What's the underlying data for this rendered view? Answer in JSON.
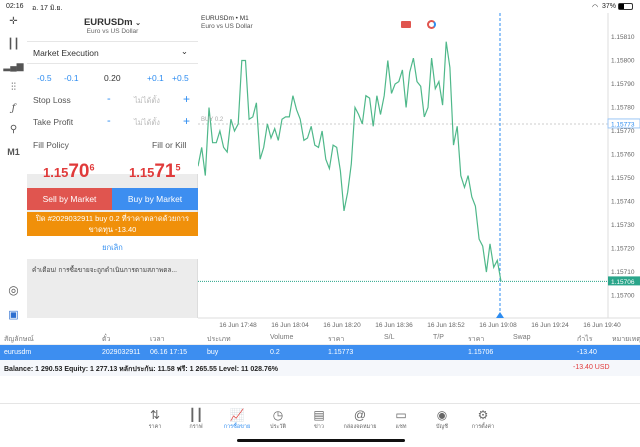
{
  "status": {
    "time": "02:16",
    "date": "อ. 17 มิ.ย.",
    "battery": "37%"
  },
  "toolbar_icons": [
    "crosshair-icon",
    "indicators-icon",
    "objects-icon",
    "settings-sliders-icon",
    "function-icon",
    "user-search-icon",
    "timeframe-label",
    "zoom-chart-icon",
    "trade-app-icon"
  ],
  "timeframe": "M1",
  "panel": {
    "symbol": "EURUSDm",
    "symbol_desc": "Euro vs US Dollar",
    "execution": "Market Execution",
    "vol_steps": [
      "-0.5",
      "-0.1",
      "+0.1",
      "+0.5"
    ],
    "volume": "0.20",
    "stop_loss": "Stop Loss",
    "take_profit": "Take Profit",
    "not_set": "ไม่ได้ตั้ง",
    "minus": "-",
    "plus": "+",
    "fill_policy": "Fill Policy",
    "fill_value": "Fill or Kill",
    "bid": {
      "main": "1.15",
      "big": "70",
      "sup": "6"
    },
    "ask": {
      "main": "1.15",
      "big": "71",
      "sup": "5"
    },
    "sell": "Sell by Market",
    "buy": "Buy by Market",
    "close_order": "ปิด #2029032911 buy 0.2 ที่ราคาตลาดด้วยการขาดทุน -13.40",
    "cancel": "ยกเลิก",
    "warning": "คำเตือน! การซื้อขายจะถูกดำเนินการตามสภาพตล..."
  },
  "chart": {
    "title": "EURUSDm • M1",
    "subtitle": "Euro vs US Dollar",
    "position_label": "BUY 0.2",
    "open_price": "1.15773",
    "current_price": "1.15706",
    "colors": {
      "line": "#4fb88a",
      "current": "#2aa58a",
      "position": "#2d8cf0"
    }
  },
  "chart_data": {
    "type": "line",
    "title": "EURUSDm • M1",
    "ylim": [
      1.15695,
      1.15815
    ],
    "yticks": [
      "1.15810",
      "1.15800",
      "1.15790",
      "1.15780",
      "1.15770",
      "1.15760",
      "1.15750",
      "1.15740",
      "1.15730",
      "1.15720",
      "1.15710",
      "1.15700"
    ],
    "xticks": [
      "16 Jun 17:48",
      "16 Jun 18:04",
      "16 Jun 18:20",
      "16 Jun 18:36",
      "16 Jun 18:52",
      "16 Jun 19:08",
      "16 Jun 19:24",
      "16 Jun 19:40"
    ],
    "series": [
      {
        "name": "EURUSDm",
        "values": [
          1.15755,
          1.15763,
          1.15751,
          1.1578,
          1.15765,
          1.15765,
          1.1577,
          1.15763,
          1.15761,
          1.15775,
          1.1577,
          1.15773,
          1.158,
          1.158,
          1.15775,
          1.15776,
          1.15782,
          1.15758,
          1.15763,
          1.15773,
          1.15767,
          1.15771,
          1.15766,
          1.15775,
          1.15776,
          1.15776,
          1.15785,
          1.15779,
          1.15775,
          1.15766,
          1.15767,
          1.15772,
          1.15764,
          1.15763,
          1.1577,
          1.15758,
          1.15754,
          1.15764,
          1.15763,
          1.15753,
          1.15736,
          1.15744,
          1.15756,
          1.1578,
          1.15777,
          1.15773,
          1.15785,
          1.15784,
          1.15772,
          1.15785,
          1.15777,
          1.15785,
          1.158,
          1.15786,
          1.1579,
          1.15791,
          1.15796,
          1.1578,
          1.15795,
          1.15801,
          1.15791,
          1.15789,
          1.15776,
          1.1578,
          1.15801,
          1.15788,
          1.15791,
          1.15781,
          1.15808,
          1.15797,
          1.15764,
          1.15772,
          1.15751,
          1.15746,
          1.15751,
          1.15742,
          1.15738,
          1.15724,
          1.15721,
          1.1571,
          1.15722,
          1.15712,
          1.15715,
          1.15706
        ]
      }
    ]
  },
  "table": {
    "headers": [
      "สัญลักษณ์",
      "ตั๋ว",
      "เวลา",
      "ประเภท",
      "Volume",
      "ราคา",
      "S/L",
      "T/P",
      "ราคา",
      "Swap",
      "กำไร",
      "หมายเหตุ"
    ],
    "row": [
      "eurusdm",
      "2029032911",
      "06.16 17:15",
      "buy",
      "0.2",
      "1.15773",
      "",
      "",
      "1.15706",
      "",
      "-13.40",
      ""
    ],
    "summary": "Balance: 1 290.53 Equity: 1 277.13 หลักประกัน: 11.58 ฟรี: 1 265.55 Level: 11 028.76%",
    "total": "-13.40  USD"
  },
  "nav": [
    {
      "icon": "quotes-icon",
      "label": "ราคา"
    },
    {
      "icon": "chart-icon",
      "label": "กราฟ"
    },
    {
      "icon": "trade-icon",
      "label": "การซื้อขาย",
      "active": true
    },
    {
      "icon": "history-icon",
      "label": "ประวัติ"
    },
    {
      "icon": "news-icon",
      "label": "ข่าว"
    },
    {
      "icon": "mailbox-icon",
      "label": "กล่องจดหมาย"
    },
    {
      "icon": "chat-icon",
      "label": "แชท"
    },
    {
      "icon": "account-icon",
      "label": "บัญชี"
    },
    {
      "icon": "settings-icon",
      "label": "การตั้งค่า"
    }
  ]
}
